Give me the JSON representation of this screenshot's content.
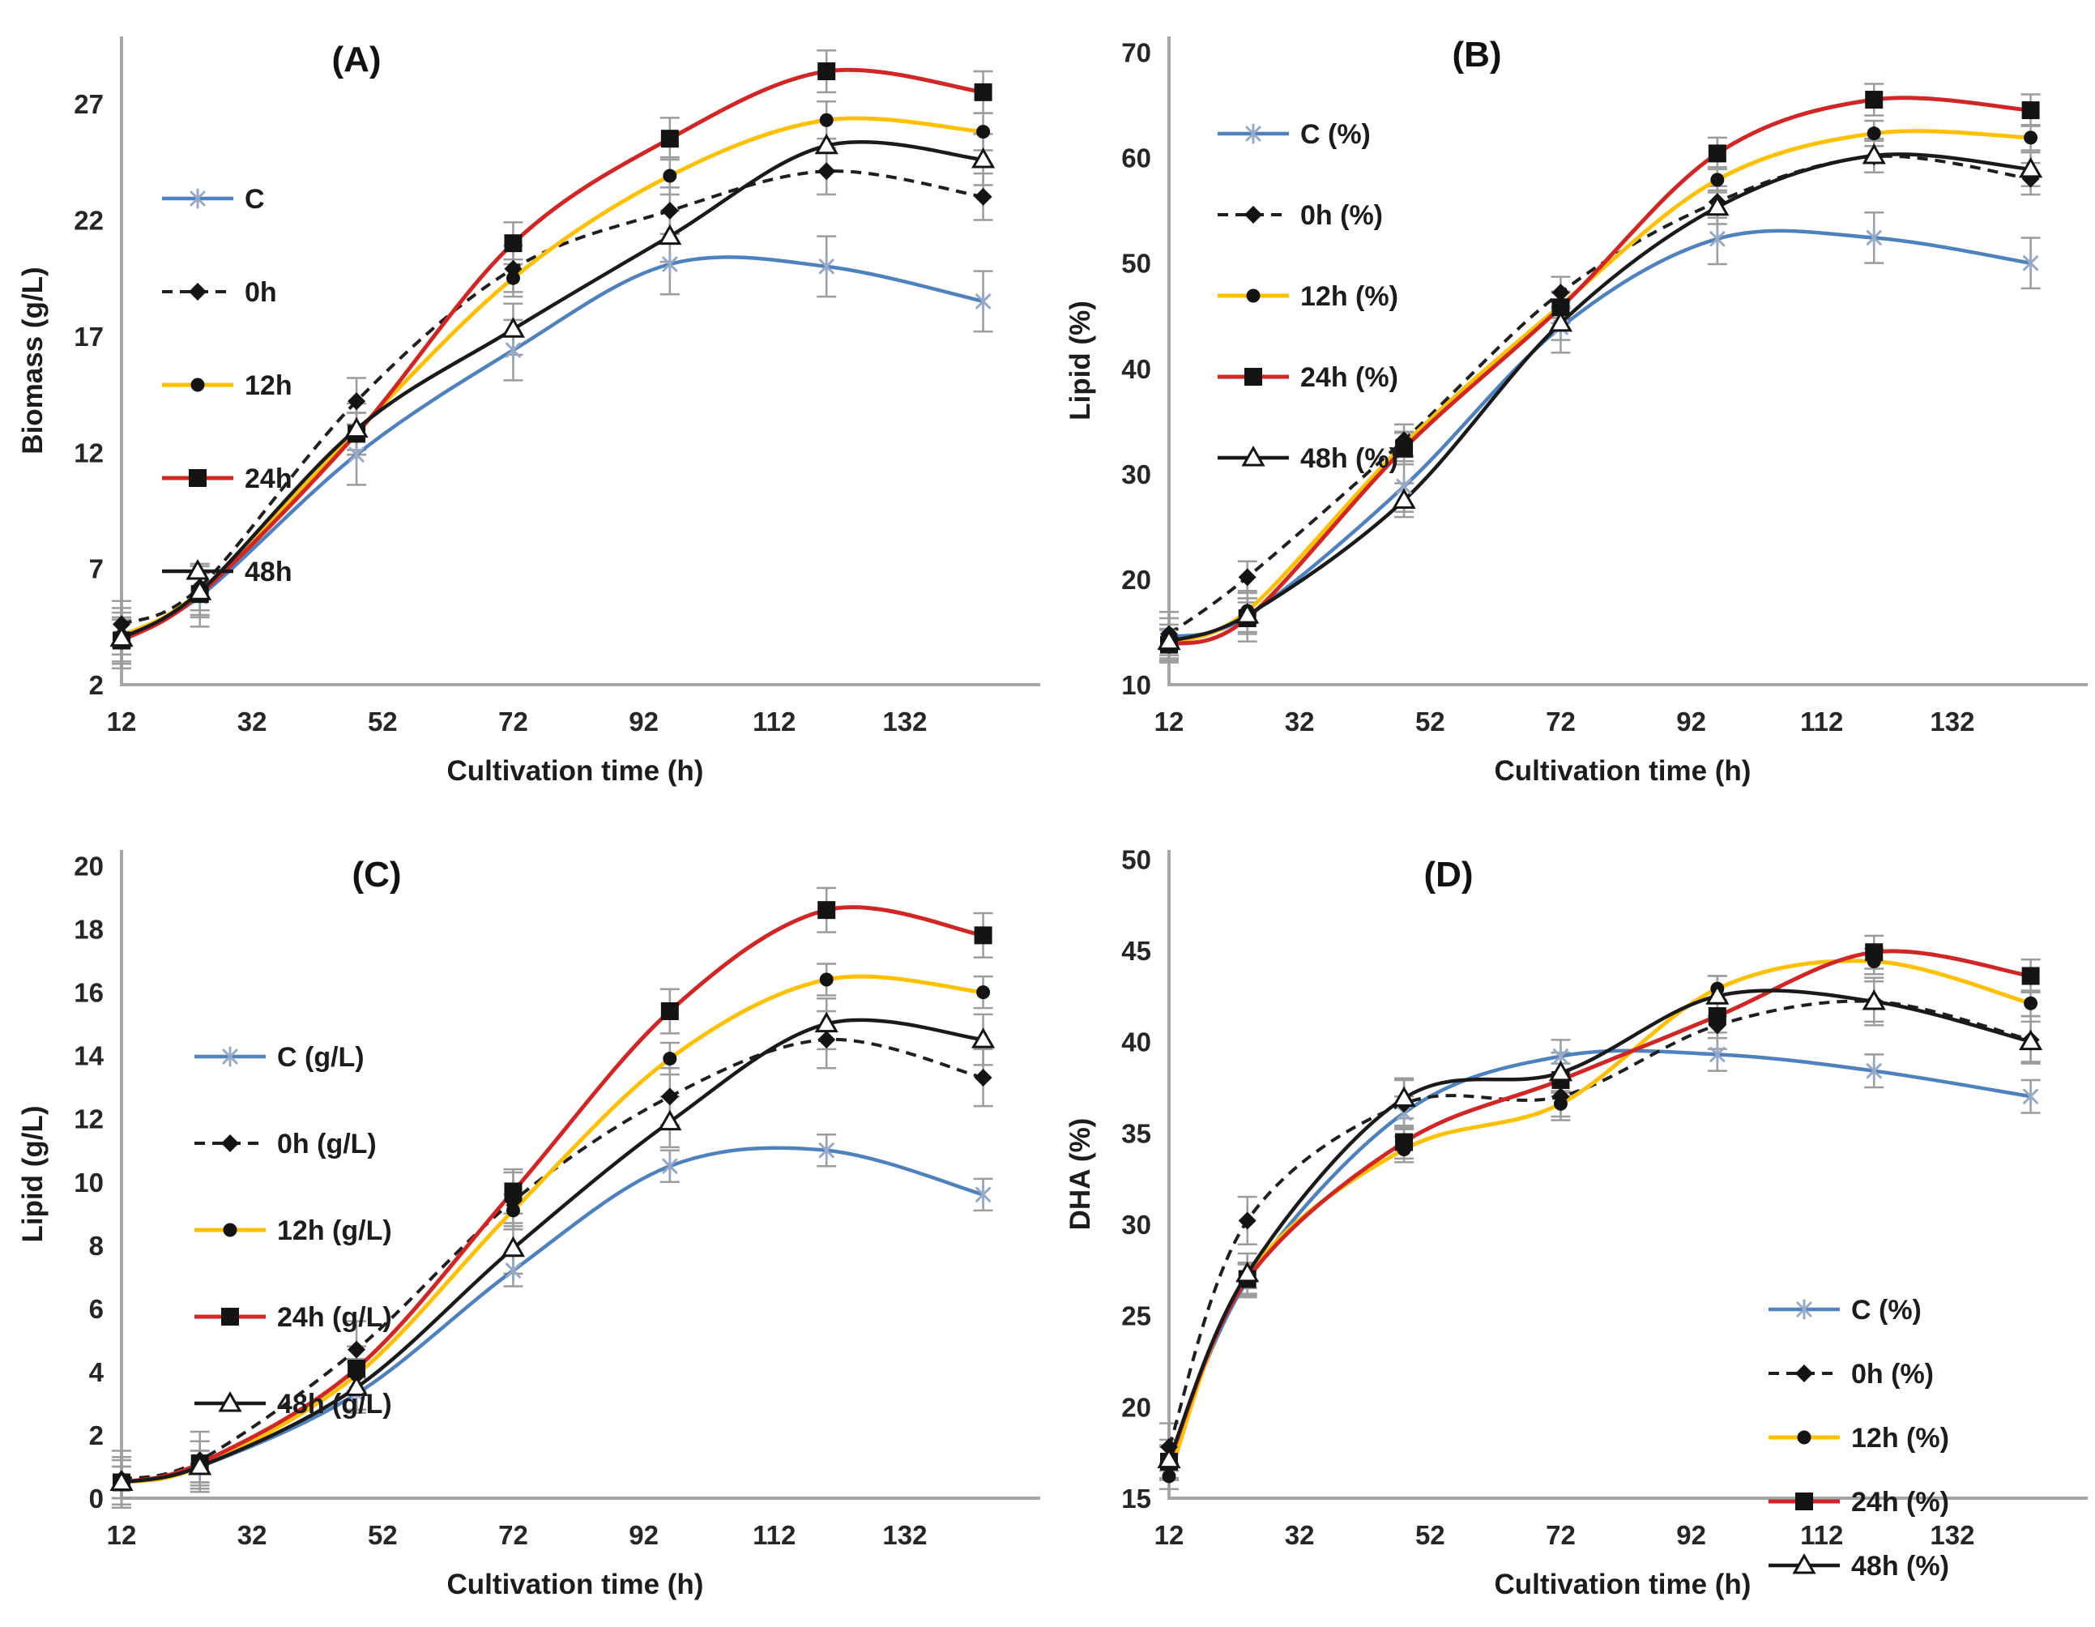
{
  "figure": {
    "background": "#ffffff",
    "axis_color": "#a6a6a6",
    "error_bar_color": "#9c9c9c",
    "tick_text_color": "#262626",
    "legend_text_color": "#1c1c1c"
  },
  "chart_data": [
    {
      "type": "line",
      "panel_label": "(A)",
      "xlabel": "Cultivation time (h)",
      "ylabel": "Biomass (g/L)",
      "x_ticks": [
        12,
        32,
        52,
        72,
        92,
        112,
        132
      ],
      "y_ticks": [
        2,
        7,
        12,
        17,
        22,
        27
      ],
      "xlim": [
        12,
        151
      ],
      "ylim": [
        2,
        29.9
      ],
      "legend_pos": {
        "x": 200,
        "y": 245,
        "dy": 115
      },
      "title_pos": {
        "x": 440,
        "y": 88
      },
      "x": [
        12,
        24,
        48,
        72,
        96,
        120,
        144
      ],
      "series": [
        {
          "name": "C",
          "color": "#4f81bd",
          "line": "solid",
          "width": 4.5,
          "marker": "xstar",
          "marker_color": "#97a9c4",
          "err": 1.3,
          "values": [
            4.0,
            5.8,
            11.9,
            16.4,
            20.1,
            20.0,
            18.5
          ]
        },
        {
          "name": "0h",
          "color": "#1f1f1f",
          "line": "dashed",
          "width": 4,
          "marker": "diamond",
          "marker_color": "#141414",
          "err": 1.0,
          "values": [
            4.6,
            6.2,
            14.2,
            19.9,
            22.4,
            24.1,
            23.0
          ]
        },
        {
          "name": "12h",
          "color": "#ffc000",
          "line": "solid",
          "width": 5,
          "marker": "circle",
          "marker_color": "#141414",
          "err": 0.8,
          "values": [
            4.1,
            6.0,
            12.9,
            19.5,
            23.9,
            26.3,
            25.8
          ]
        },
        {
          "name": "24h",
          "color": "#d02626",
          "line": "solid",
          "width": 5,
          "marker": "square",
          "marker_color": "#141414",
          "err": 0.9,
          "values": [
            3.9,
            5.9,
            12.8,
            21.0,
            25.5,
            28.4,
            27.5
          ]
        },
        {
          "name": "48h",
          "color": "#1a1a1a",
          "line": "solid",
          "width": 4.5,
          "marker": "triangle",
          "marker_color": "#141414",
          "err": 1.1,
          "values": [
            4.0,
            6.0,
            13.0,
            17.3,
            21.3,
            25.2,
            24.6
          ]
        }
      ]
    },
    {
      "type": "line",
      "panel_label": "(B)",
      "xlabel": "Cultivation time (h)",
      "ylabel": "Lipid (%)",
      "x_ticks": [
        12,
        32,
        52,
        72,
        92,
        112,
        132
      ],
      "y_ticks": [
        10,
        20,
        30,
        40,
        50,
        60,
        70
      ],
      "xlim": [
        12,
        151
      ],
      "ylim": [
        10,
        71.5
      ],
      "legend_pos": {
        "x": 210,
        "y": 165,
        "dy": 100
      },
      "title_pos": {
        "x": 530,
        "y": 82
      },
      "x": [
        12,
        24,
        48,
        72,
        96,
        120,
        144
      ],
      "series": [
        {
          "name": "C (%)",
          "color": "#4f81bd",
          "line": "solid",
          "width": 4.5,
          "marker": "xstar",
          "marker_color": "#97a9c4",
          "err": 2.4,
          "values": [
            14.5,
            16.5,
            28.8,
            43.9,
            52.3,
            52.4,
            50.0
          ]
        },
        {
          "name": "0h (%)",
          "color": "#1f1f1f",
          "line": "dashed",
          "width": 4,
          "marker": "diamond",
          "marker_color": "#141414",
          "err": 1.5,
          "values": [
            14.8,
            20.2,
            33.2,
            47.2,
            55.8,
            60.1,
            58.0
          ]
        },
        {
          "name": "12h (%)",
          "color": "#ffc000",
          "line": "solid",
          "width": 5,
          "marker": "circle",
          "marker_color": "#141414",
          "err": 1.2,
          "values": [
            14.0,
            17.0,
            32.8,
            46.0,
            57.9,
            62.3,
            61.9
          ]
        },
        {
          "name": "24h (%)",
          "color": "#d02626",
          "line": "solid",
          "width": 5,
          "marker": "square",
          "marker_color": "#141414",
          "err": 1.5,
          "values": [
            13.8,
            16.3,
            32.4,
            45.8,
            60.4,
            65.5,
            64.5
          ]
        },
        {
          "name": "48h (%)",
          "color": "#1a1a1a",
          "line": "solid",
          "width": 4.5,
          "marker": "triangle",
          "marker_color": "#141414",
          "err": 1.6,
          "values": [
            14.1,
            16.6,
            27.5,
            44.3,
            55.3,
            60.2,
            58.9
          ]
        }
      ]
    },
    {
      "type": "line",
      "panel_label": "(C)",
      "xlabel": "Cultivation time (h)",
      "ylabel": "Lipid (g/L)",
      "x_ticks": [
        12,
        32,
        52,
        72,
        92,
        112,
        132
      ],
      "y_ticks": [
        0,
        2,
        4,
        6,
        8,
        10,
        12,
        14,
        16,
        18,
        20
      ],
      "xlim": [
        12,
        151
      ],
      "ylim": [
        0,
        20.5
      ],
      "legend_pos": {
        "x": 240,
        "y": 300,
        "dy": 107
      },
      "title_pos": {
        "x": 465,
        "y": 90
      },
      "x": [
        12,
        24,
        48,
        72,
        96,
        120,
        144
      ],
      "series": [
        {
          "name": "C (g/L)",
          "color": "#4f81bd",
          "line": "solid",
          "width": 4.5,
          "marker": "xstar",
          "marker_color": "#97a9c4",
          "err": 0.5,
          "values": [
            0.5,
            1.0,
            3.3,
            7.2,
            10.5,
            11.0,
            9.6
          ]
        },
        {
          "name": "0h (g/L)",
          "color": "#1f1f1f",
          "line": "dashed",
          "width": 4,
          "marker": "diamond",
          "marker_color": "#141414",
          "err": 0.9,
          "values": [
            0.6,
            1.2,
            4.7,
            9.4,
            12.7,
            14.5,
            13.3
          ]
        },
        {
          "name": "12h (g/L)",
          "color": "#ffc000",
          "line": "solid",
          "width": 5,
          "marker": "circle",
          "marker_color": "#141414",
          "err": 0.5,
          "values": [
            0.5,
            1.0,
            3.9,
            9.1,
            13.9,
            16.4,
            16.0
          ]
        },
        {
          "name": "24h (g/L)",
          "color": "#d02626",
          "line": "solid",
          "width": 5,
          "marker": "square",
          "marker_color": "#141414",
          "err": 0.7,
          "values": [
            0.5,
            1.1,
            4.1,
            9.7,
            15.4,
            18.6,
            17.8
          ]
        },
        {
          "name": "48h (g/L)",
          "color": "#1a1a1a",
          "line": "solid",
          "width": 4.5,
          "marker": "triangle",
          "marker_color": "#141414",
          "err": 0.8,
          "values": [
            0.5,
            1.0,
            3.5,
            7.9,
            11.9,
            15.0,
            14.5
          ]
        }
      ]
    },
    {
      "type": "line",
      "panel_label": "(D)",
      "xlabel": "Cultivation time (h)",
      "ylabel": "DHA (%)",
      "x_ticks": [
        12,
        32,
        52,
        72,
        92,
        112,
        132
      ],
      "y_ticks": [
        15,
        20,
        25,
        30,
        35,
        40,
        45,
        50
      ],
      "xlim": [
        12,
        151
      ],
      "ylim": [
        15,
        50.5
      ],
      "legend_pos": {
        "x": 890,
        "y": 612,
        "dy": 79
      },
      "title_pos": {
        "x": 495,
        "y": 90
      },
      "x": [
        12,
        24,
        48,
        72,
        96,
        120,
        144
      ],
      "series": [
        {
          "name": "C (%)",
          "color": "#4f81bd",
          "line": "solid",
          "width": 4.5,
          "marker": "xstar",
          "marker_color": "#97a9c4",
          "err": 0.9,
          "values": [
            16.9,
            26.9,
            36.1,
            39.2,
            39.3,
            38.4,
            37.0
          ]
        },
        {
          "name": "0h (%)",
          "color": "#1f1f1f",
          "line": "dashed",
          "width": 4,
          "marker": "diamond",
          "marker_color": "#141414",
          "err": 1.3,
          "values": [
            17.8,
            30.2,
            36.6,
            37.0,
            40.9,
            42.2,
            40.1
          ]
        },
        {
          "name": "12h (%)",
          "color": "#ffc000",
          "line": "solid",
          "width": 5,
          "marker": "circle",
          "marker_color": "#141414",
          "err": 0.7,
          "values": [
            16.2,
            27.2,
            34.1,
            36.6,
            42.9,
            44.4,
            42.1
          ]
        },
        {
          "name": "24h (%)",
          "color": "#d02626",
          "line": "solid",
          "width": 5,
          "marker": "square",
          "marker_color": "#141414",
          "err": 0.9,
          "values": [
            17.0,
            27.0,
            34.5,
            37.9,
            41.4,
            44.9,
            43.6
          ]
        },
        {
          "name": "48h (%)",
          "color": "#1a1a1a",
          "line": "solid",
          "width": 4.5,
          "marker": "triangle",
          "marker_color": "#141414",
          "err": 1.1,
          "values": [
            17.1,
            27.3,
            36.9,
            38.3,
            42.5,
            42.2,
            40.0
          ]
        }
      ]
    }
  ]
}
